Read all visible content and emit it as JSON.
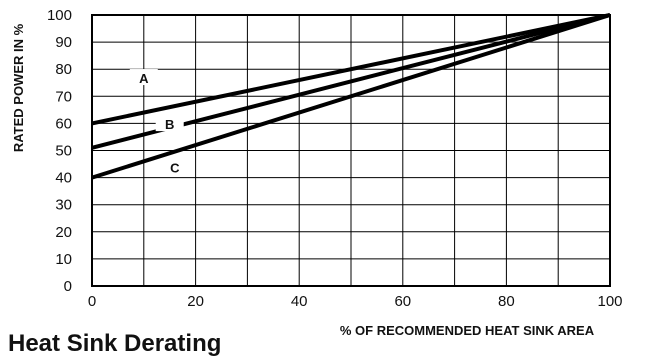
{
  "chart_data": {
    "type": "line",
    "title": "Heat Sink Derating",
    "xlabel": "% OF RECOMMENDED HEAT SINK AREA",
    "ylabel": "RATED POWER IN %",
    "xlim": [
      0,
      100
    ],
    "ylim": [
      0,
      100
    ],
    "xticks": [
      0,
      20,
      40,
      60,
      80,
      100
    ],
    "yticks": [
      0,
      10,
      20,
      30,
      40,
      50,
      60,
      70,
      80,
      90,
      100
    ],
    "grid": true,
    "x_grid_step": 10,
    "y_grid_step": 10,
    "series": [
      {
        "name": "A",
        "x": [
          0,
          100
        ],
        "y": [
          60,
          100
        ],
        "label_at": [
          10,
          76
        ]
      },
      {
        "name": "B",
        "x": [
          0,
          100
        ],
        "y": [
          51,
          100
        ],
        "label_at": [
          15,
          59
        ]
      },
      {
        "name": "C",
        "x": [
          0,
          100
        ],
        "y": [
          40,
          100
        ],
        "label_at": [
          16,
          43
        ]
      }
    ]
  }
}
